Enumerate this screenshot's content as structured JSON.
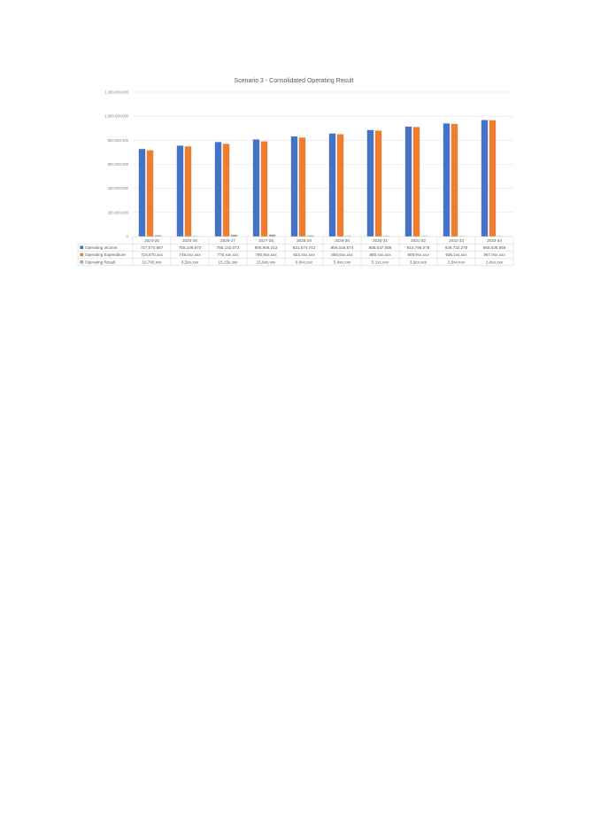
{
  "chart_data": {
    "type": "bar",
    "title": "Scenario 3 - Consolidated Operating Result",
    "categories": [
      "2024-25",
      "2025-26",
      "2026-27",
      "2027-28",
      "2028-29",
      "2029-30",
      "2030-31",
      "2031-32",
      "2032-33",
      "2033-34"
    ],
    "ylim": [
      0,
      1200000000
    ],
    "yticks": [
      "0",
      "200,000,000",
      "400,000,000",
      "600,000,000",
      "800,000,000",
      "1,000,000,000",
      "1,200,000,000"
    ],
    "grid": true,
    "legend": "data-table",
    "series": [
      {
        "name": "Operating Income",
        "color": "#4472c4",
        "values": [
          727570987,
          755109870,
          785182073,
          806906313,
          831674743,
          856025674,
          885037088,
          913796078,
          939732278,
          968035059
        ],
        "labels": [
          "727,570,987",
          "755,109,870",
          "785,182,073",
          "806,906,313",
          "831,674,743",
          "856,025,674",
          "885,037,088",
          "913,796,078",
          "939,732,278",
          "968,035,059"
        ]
      },
      {
        "name": "Operating Expenditure",
        "color": "#ed7d31",
        "values": [
          716870000,
          749000000,
          770000000,
          790900000,
          822400000,
          850600000,
          880000000,
          909900000,
          936100000,
          967000000
        ],
        "labels": [
          "716,870,xxx",
          "749,0xx,xxx",
          "770,xxx,xxx",
          "790,9xx,xxx",
          "822,4xx,xxx",
          "850,6xx,xxx",
          "880,xxx,xxx",
          "909,9xx,xxx",
          "936,1xx,xxx",
          "967,0xx,xxx"
        ]
      },
      {
        "name": "Operating Result",
        "color": "#a5a5a5",
        "values": [
          10700000,
          3500000,
          15150000,
          15900000,
          8800000,
          5400000,
          5100000,
          3900000,
          3500000,
          1000000
        ],
        "labels": [
          "10,700,xxx",
          "3,5xx,xxx",
          "15,15x,xxx",
          "15,9xx,xxx",
          "8,8xx,xxx",
          "5,4xx,xxx",
          "5,1xx,xxx",
          "3,9xx,xxx",
          "3,5xx,xxx",
          "1,0xx,xxx"
        ]
      }
    ]
  }
}
